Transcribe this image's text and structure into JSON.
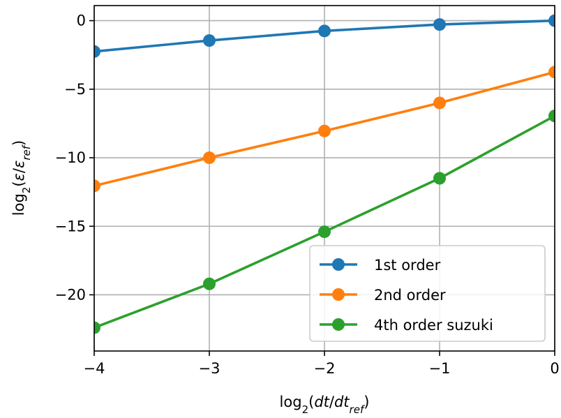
{
  "chart_data": {
    "type": "line",
    "x": [
      -4,
      -3,
      -2,
      -1,
      0
    ],
    "xlim": [
      -4,
      0
    ],
    "ylim": [
      -24.1,
      1.1
    ],
    "xticks": [
      -4,
      -3,
      -2,
      -1,
      0
    ],
    "yticks": [
      0,
      -5,
      -10,
      -15,
      -20
    ],
    "xtick_labels": [
      "−4",
      "−3",
      "−2",
      "−1",
      "0"
    ],
    "ytick_labels": [
      "0",
      "−5",
      "−10",
      "−15",
      "−20"
    ],
    "xlabel": {
      "pre": "log",
      "sub": "2",
      "open": "(",
      "var1": "dt",
      "slash": "/",
      "var2": "dt",
      "var2sub": "ref",
      "close": ")"
    },
    "ylabel": {
      "pre": "log",
      "sub": "2",
      "open": "(",
      "var1": "ε",
      "slash": "/",
      "var2": "ε",
      "var2sub": "ref",
      "close": ")"
    },
    "grid": true,
    "legend_position": "lower-right",
    "series": [
      {
        "name": "1st order",
        "color": "#1f77b4",
        "values": [
          -2.25,
          -1.45,
          -0.75,
          -0.28,
          0.0
        ]
      },
      {
        "name": "2nd order",
        "color": "#ff7f0e",
        "values": [
          -12.05,
          -10.0,
          -8.05,
          -6.0,
          -3.75
        ]
      },
      {
        "name": "4th order suzuki",
        "color": "#2ca02c",
        "values": [
          -22.4,
          -19.2,
          -15.4,
          -11.5,
          -6.95
        ]
      }
    ]
  }
}
